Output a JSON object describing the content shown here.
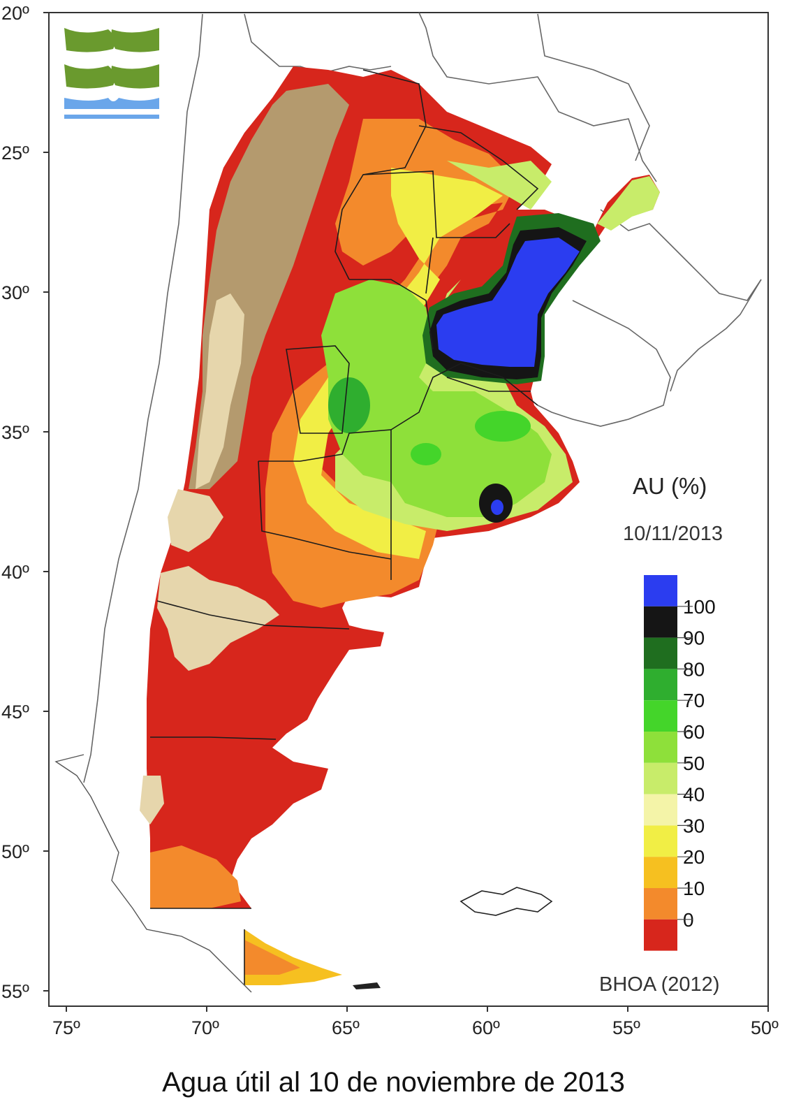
{
  "map": {
    "lat_ticks": [
      "20º",
      "25º",
      "30º",
      "35º",
      "40º",
      "45º",
      "50º",
      "55º"
    ],
    "lon_ticks": [
      "75º",
      "70º",
      "65º",
      "60º",
      "55º",
      "50º"
    ],
    "region": "Argentina"
  },
  "legend": {
    "title": "AU (%)",
    "date": "10/11/2013",
    "classes": [
      {
        "label": "100",
        "color": "#2b3df0"
      },
      {
        "label": "90",
        "color": "#151515"
      },
      {
        "label": "80",
        "color": "#1f6e1f"
      },
      {
        "label": "70",
        "color": "#2fae2f"
      },
      {
        "label": "60",
        "color": "#44d52a"
      },
      {
        "label": "50",
        "color": "#8ee03a"
      },
      {
        "label": "40",
        "color": "#c8ec6a"
      },
      {
        "label": "30",
        "color": "#f4f4a8"
      },
      {
        "label": "20",
        "color": "#f1ee45"
      },
      {
        "label": "10",
        "color": "#f6c020"
      },
      {
        "label": "0",
        "color": "#f38a2c"
      },
      {
        "label": "",
        "color": "#d7261c"
      }
    ]
  },
  "source": "BHOA (2012)",
  "caption": "Agua útil al 10 de noviembre de 2013",
  "colors": {
    "dry_red": "#d7261c",
    "orange": "#f38a2c",
    "mountain_brown": "#b49a6e",
    "mountain_light": "#e6d6ac",
    "logo_green": "#6a9a2e",
    "logo_blue": "#6aa6ea"
  }
}
